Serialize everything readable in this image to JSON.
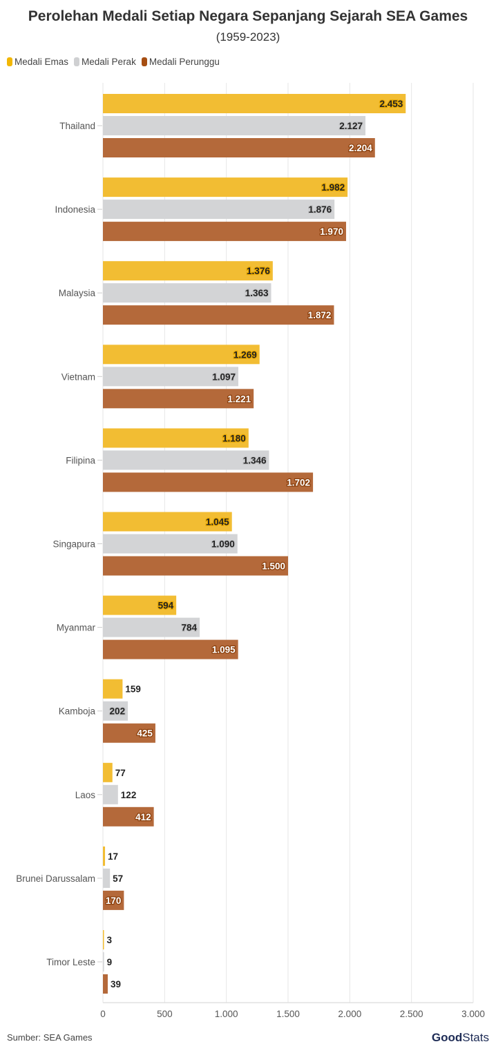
{
  "chart_data": {
    "type": "bar",
    "orientation": "horizontal",
    "title": "Perolehan Medali Setiap Negara Sepanjang Sejarah SEA Games",
    "subtitle": "(1959-2023)",
    "categories": [
      "Thailand",
      "Indonesia",
      "Malaysia",
      "Vietnam",
      "Filipina",
      "Singapura",
      "Myanmar",
      "Kamboja",
      "Laos",
      "Brunei Darussalam",
      "Timor Leste"
    ],
    "series": [
      {
        "name": "Medali Emas",
        "color": "#f2bd33",
        "values": [
          2453,
          1982,
          1376,
          1269,
          1180,
          1045,
          594,
          159,
          77,
          17,
          3
        ],
        "labels": [
          "2.453",
          "1.982",
          "1.376",
          "1.269",
          "1.180",
          "1.045",
          "594",
          "159",
          "77",
          "17",
          "3"
        ]
      },
      {
        "name": "Medali Perak",
        "color": "#d3d4d6",
        "values": [
          2127,
          1876,
          1363,
          1097,
          1346,
          1090,
          784,
          202,
          122,
          57,
          9
        ],
        "labels": [
          "2.127",
          "1.876",
          "1.363",
          "1.097",
          "1.346",
          "1.090",
          "784",
          "202",
          "122",
          "57",
          "9"
        ]
      },
      {
        "name": "Medali Perunggu",
        "color": "#b4693a",
        "values": [
          2204,
          1970,
          1872,
          1221,
          1702,
          1500,
          1095,
          425,
          412,
          170,
          39
        ],
        "labels": [
          "2.204",
          "1.970",
          "1.872",
          "1.221",
          "1.702",
          "1.500",
          "1.095",
          "425",
          "412",
          "170",
          "39"
        ]
      }
    ],
    "xlim": [
      0,
      3000
    ],
    "xticks": [
      0,
      500,
      1000,
      1500,
      2000,
      2500,
      3000
    ],
    "xtick_labels": [
      "0",
      "500",
      "1.000",
      "1.500",
      "2.000",
      "2.500",
      "3.000"
    ],
    "grid": true,
    "legend_placement": "top-left"
  },
  "footer": {
    "source": "Sumber: SEA Games",
    "logo": "GoodStats"
  }
}
